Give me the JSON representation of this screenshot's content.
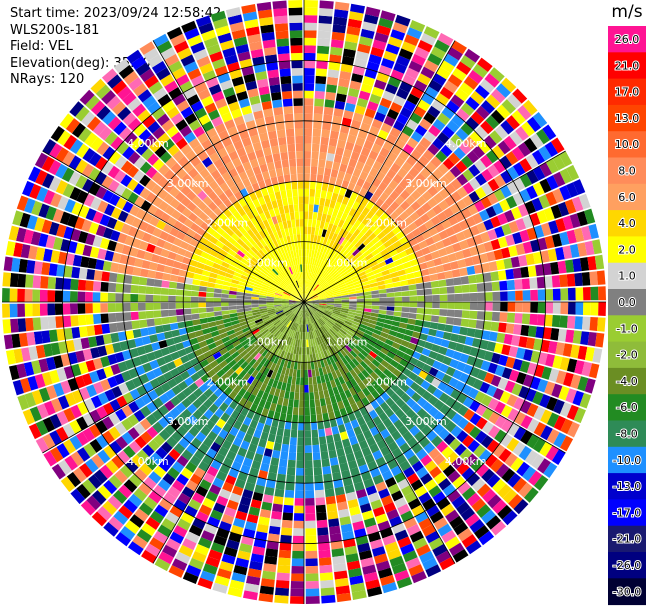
{
  "header": {
    "start_time": "Start time: 2023/09/24 12:58:42",
    "instrument": "WLS200s-181",
    "field": "Field: VEL",
    "elevation": "Elevation(deg): 35.30",
    "nrays": "NRays: 120"
  },
  "chart_data": {
    "type": "heatmap",
    "projection": "polar PPI",
    "field": "VEL",
    "units": "m/s",
    "nrays": 120,
    "elevation_deg": 35.3,
    "range_rings_km": [
      1.0,
      2.0,
      3.0,
      4.0
    ],
    "ring_labels": [
      "1.00km",
      "2.00km",
      "3.00km",
      "4.00km"
    ],
    "max_range_km": 5.0,
    "colorbar": {
      "label": "m/s",
      "ticks": [
        "26.0",
        "21.0",
        "17.0",
        "13.0",
        "10.0",
        "8.0",
        "6.0",
        "4.0",
        "2.0",
        "1.0",
        "0.0",
        "-1.0",
        "-2.0",
        "-4.0",
        "-6.0",
        "-8.0",
        "-10.0",
        "-13.0",
        "-17.0",
        "-21.0",
        "-26.0",
        "-30.0"
      ],
      "colors": [
        "#ff1493",
        "#ff0000",
        "#ff2a00",
        "#ff4500",
        "#ff6a30",
        "#ff8c5a",
        "#ffa060",
        "#ffd700",
        "#ffff00",
        "#d3d3d3",
        "#808080",
        "#9acd32",
        "#8fbc3a",
        "#6b8e23",
        "#228b22",
        "#2e8b57",
        "#1e90ff",
        "#0000cd",
        "#0000ff",
        "#191970",
        "#000080",
        "#000033"
      ]
    },
    "description_values": {
      "north_sector_near_km": "positive 1.0 to 10.0 m/s",
      "south_sector_near_km": "negative -1.0 to -8.0 m/s",
      "east_west_near": "0.0 m/s",
      "beyond_3km": "noisy, all values"
    }
  }
}
